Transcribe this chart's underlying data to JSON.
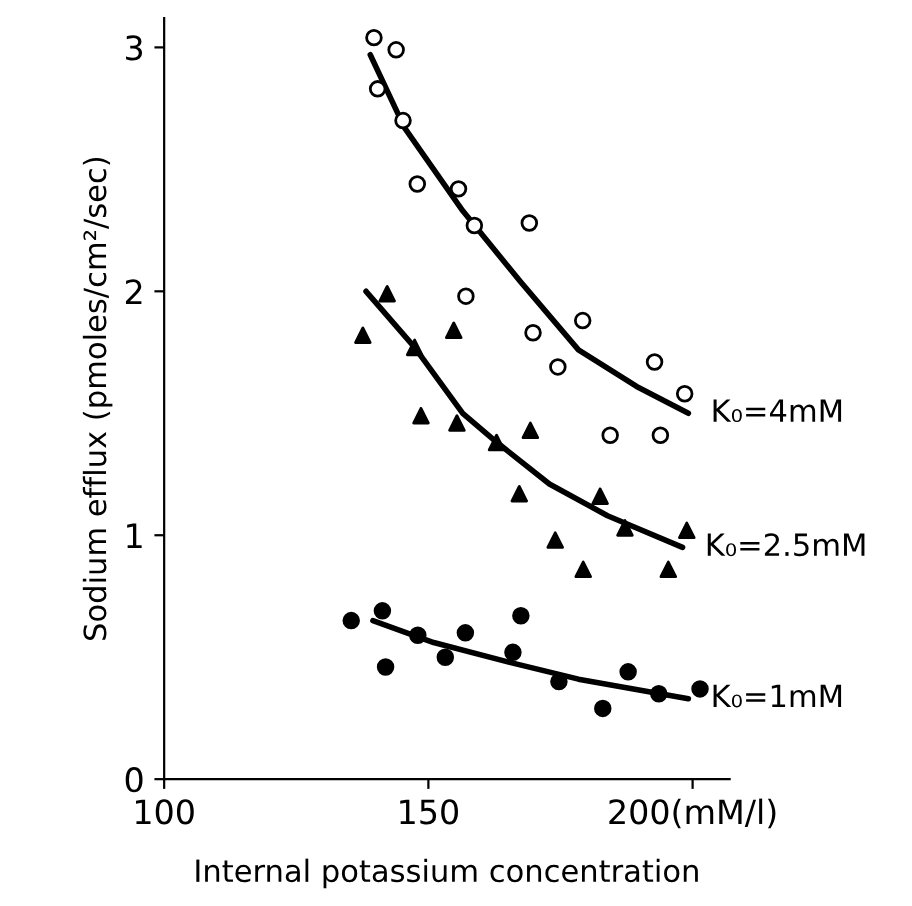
{
  "chart_data": {
    "type": "scatter",
    "xlabel": "Internal potassium concentration",
    "ylabel": "Sodium efflux (pmoles/cm²/sec)",
    "xlim": [
      100,
      207
    ],
    "ylim": [
      0,
      3.12
    ],
    "xticks": [
      100,
      150,
      {
        "value": 200,
        "label": "200(mM/l)"
      }
    ],
    "yticks": [
      0,
      1,
      2,
      3
    ],
    "grid": false,
    "legend": false,
    "series": [
      {
        "marker": "circle",
        "color": "#ffffff",
        "x": [
          139.7,
          143.9,
          140.4,
          145.2,
          147.9,
          155.7,
          158.7,
          169.1,
          157.1,
          169.8,
          179.2,
          174.5,
          184.4,
          192.8,
          193.9,
          198.5
        ],
        "values": [
          3.04,
          2.99,
          2.83,
          2.7,
          2.44,
          2.42,
          2.27,
          2.28,
          1.98,
          1.83,
          1.88,
          1.69,
          1.41,
          1.71,
          1.41,
          1.58
        ]
      },
      {
        "marker": "triangle",
        "color": "#000000",
        "x": [
          137.6,
          142.2,
          147.4,
          148.6,
          154.8,
          155.4,
          162.9,
          169.3,
          167.2,
          174.0,
          179.3,
          182.5,
          187.2,
          195.4,
          198.9
        ],
        "values": [
          1.82,
          1.99,
          1.77,
          1.49,
          1.84,
          1.46,
          1.38,
          1.43,
          1.17,
          0.98,
          0.86,
          1.16,
          1.03,
          0.86,
          1.02
        ]
      },
      {
        "marker": "circle",
        "color": "#000000",
        "x": [
          135.4,
          141.3,
          141.9,
          148.0,
          157.0,
          153.2,
          166.0,
          167.5,
          174.7,
          183.0,
          187.8,
          193.6,
          201.4
        ],
        "values": [
          0.65,
          0.69,
          0.46,
          0.59,
          0.6,
          0.5,
          0.52,
          0.67,
          0.4,
          0.29,
          0.44,
          0.35,
          0.37
        ]
      },
      {
        "type": "line",
        "name": "K₀=4mM",
        "color": "#000000",
        "x": [
          139,
          145.5,
          156.5,
          167.4,
          178.4,
          189.4,
          199.2
        ],
        "values": [
          2.97,
          2.67,
          2.33,
          2.04,
          1.76,
          1.61,
          1.5
        ]
      },
      {
        "type": "line",
        "name": "K₀=2.5mM",
        "color": "#000000",
        "x": [
          138.2,
          147.4,
          156.5,
          163,
          172.9,
          183.9,
          198.1
        ],
        "values": [
          2.0,
          1.77,
          1.5,
          1.38,
          1.21,
          1.08,
          0.95
        ]
      },
      {
        "type": "line",
        "name": "K₀=1mM",
        "color": "#000000",
        "x": [
          139.5,
          151,
          165.2,
          178.4,
          199.2
        ],
        "values": [
          0.65,
          0.56,
          0.48,
          0.41,
          0.33
        ]
      }
    ]
  }
}
